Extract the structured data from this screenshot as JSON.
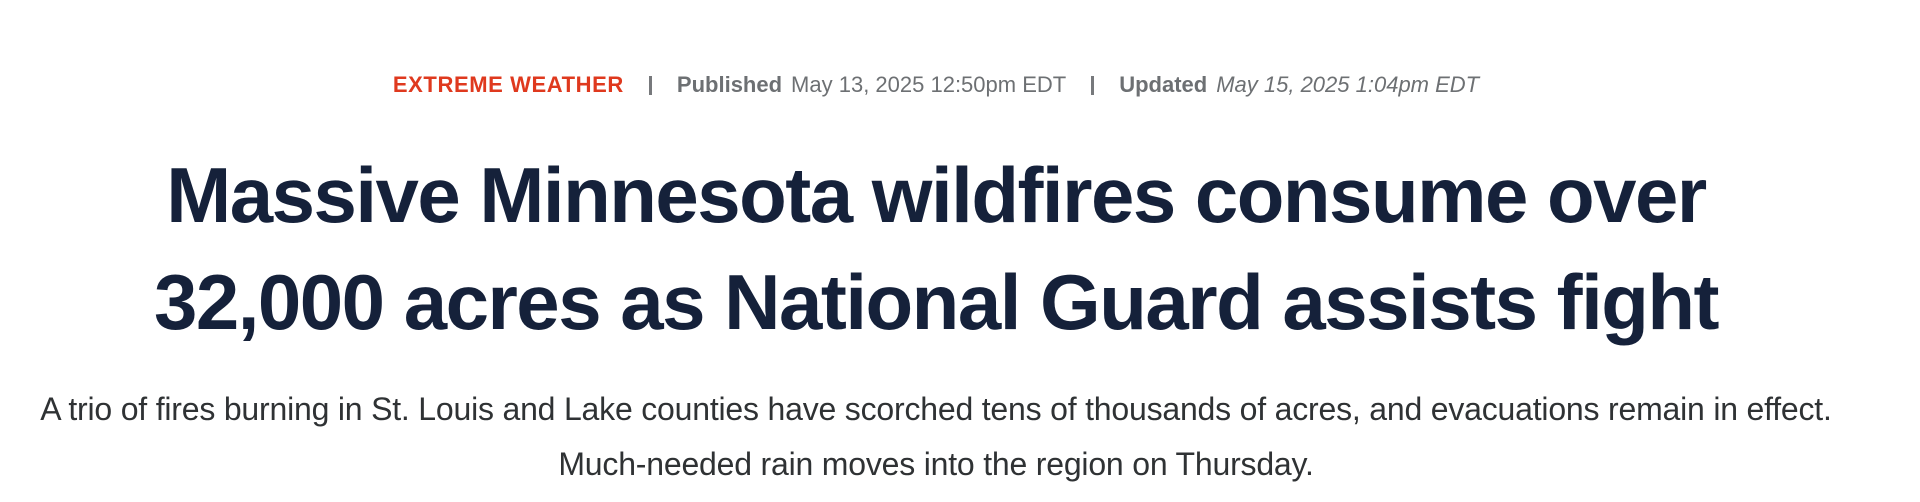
{
  "meta": {
    "category": "EXTREME WEATHER",
    "category_color": "#df391e",
    "separator": "|",
    "published_label": "Published",
    "published_value": "May 13, 2025 12:50pm EDT",
    "updated_label": "Updated",
    "updated_value": "May 15, 2025 1:04pm EDT",
    "text_color": "#6d7073"
  },
  "headline": {
    "color": "#15213a",
    "lines": [
      "Massive Minnesota wildfires consume over",
      "32,000 acres as National Guard assists fight"
    ]
  },
  "dek": {
    "color": "#2f3234",
    "lines": [
      "A trio of fires burning in St. Louis and Lake counties have scorched tens of thousands of acres, and evacuations remain in effect.",
      "Much-needed rain moves into the region on Thursday."
    ]
  }
}
